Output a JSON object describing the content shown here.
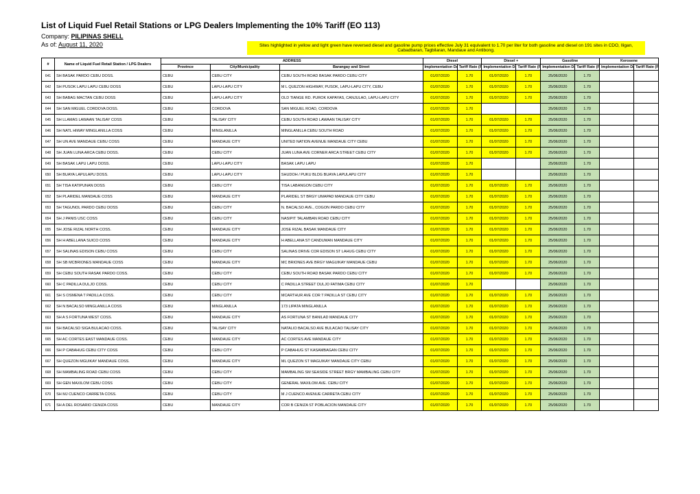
{
  "doc": {
    "title": "List of Liquid Fuel Retail Stations or LPG Dealers Implementing the 10% Tariff (EO 113)",
    "company_label": "Company:",
    "company_name": "PILIPINAS SHELL",
    "asof_label": "As of:",
    "asof_date": "August 11, 2020",
    "notice": "Sites highlighted in yellow and light green have reversed diesel and gasoline pump prices effective July 31 equivalent to 1.70 per liter for both gasoline and diesel on 191 sites in CDO, Iligan, Cabadbaran, Tagbilaran, Mandaue and Antibong.",
    "headers": {
      "num": "#",
      "name": "Name of Liquid Fuel Retail Station / LPG Dealers",
      "address": "ADDRESS",
      "province": "Province",
      "city": "City/Municipality",
      "street": "Barangay and Street",
      "diesel": "Diesel",
      "dieselp": "Diesel +",
      "gasoline": "Gasoline",
      "kerosene": "Kerosene",
      "impl": "Implementation Date",
      "rate": "Tariff Rate (Php)"
    },
    "colors": {
      "yellow": "#ffff00",
      "green": "#c5e0b4"
    },
    "rows": [
      {
        "n": "641",
        "name": "SH BASAK PARDO CEBU DOSS.",
        "prov": "CEBU",
        "city": "CEBU CITY",
        "street": "CEBU SOUTH ROAD BASAK PARDO CEBU CITY",
        "d_date": "01/07/2020",
        "d_rate": "1.70",
        "dp_date": "01/07/2020",
        "dp_rate": "1.70",
        "g_date": "25/06/2020",
        "g_rate": "1.70",
        "g_hl": "green"
      },
      {
        "n": "642",
        "name": "SH PUSOK LAPU LAPU CEBU DOSS",
        "prov": "CEBU",
        "city": "LAPU-LAPU CITY",
        "street": "M L QUEZON HIGHWAY, PUSOK, LAPU-LAPU CITY, CEBU",
        "d_date": "01/07/2020",
        "d_rate": "1.70",
        "dp_date": "01/07/2020",
        "dp_rate": "1.70",
        "g_date": "25/06/2020",
        "g_rate": "1.70",
        "g_hl": "green"
      },
      {
        "n": "643",
        "name": "SH BABAG MACTAN CEBU DOSS",
        "prov": "CEBU",
        "city": "LAPU-LAPU CITY",
        "street": "OLD TIANGE RD. PUROK KAPAYAS, CANJULAO, LAPU-LAPU CITY",
        "d_date": "01/07/2020",
        "d_rate": "1.70",
        "dp_date": "01/07/2020",
        "dp_rate": "1.70",
        "g_date": "25/06/2020",
        "g_rate": "1.70",
        "g_hl": "green"
      },
      {
        "n": "644",
        "name": "SH SAN MIGUEL CORDOVA DOSS.",
        "prov": "CEBU",
        "city": "CORDOVA",
        "street": "SAN MIGUEL ROAD, CORDOVA",
        "d_date": "01/07/2020",
        "d_rate": "1.70",
        "dp_date": "",
        "dp_rate": "",
        "g_date": "25/06/2020",
        "g_rate": "1.70",
        "g_hl": "green"
      },
      {
        "n": "645",
        "name": "SH LLAMAS LAWAAN TALISAY COSS",
        "prov": "CEBU",
        "city": "TALISAY CITY",
        "street": "CEBU SOUTH ROAD LAWAAN TALISAY CITY",
        "d_date": "01/07/2020",
        "d_rate": "1.70",
        "dp_date": "01/07/2020",
        "dp_rate": "1.70",
        "g_date": "25/06/2020",
        "g_rate": "1.70",
        "g_hl": "green"
      },
      {
        "n": "646",
        "name": "SH NATL HIWAY MINGLANILLA COSS",
        "prov": "CEBU",
        "city": "MINGLANILLA",
        "street": "MINGLANILLA CEBU SOUTH ROAD",
        "d_date": "01/07/2020",
        "d_rate": "1.70",
        "dp_date": "01/07/2020",
        "dp_rate": "1.70",
        "g_date": "25/06/2020",
        "g_rate": "1.70",
        "g_hl": "green"
      },
      {
        "n": "647",
        "name": "SH UN AVE MANDAUE CEBU COSS",
        "prov": "CEBU",
        "city": "MANDAUE CITY",
        "street": "UNITED NATION AVENUE MANDAUE CITY CEBU",
        "d_date": "01/07/2020",
        "d_rate": "1.70",
        "dp_date": "01/07/2020",
        "dp_rate": "1.70",
        "g_date": "25/06/2020",
        "g_rate": "1.70",
        "g_hl": "green"
      },
      {
        "n": "648",
        "name": "SH JUAN LUNA ARCA CEBU DOSS.",
        "prov": "CEBU",
        "city": "CEBU CITY",
        "street": "JUAN LUNA AVE CORNER ARCA STREET CEBU CITY",
        "d_date": "01/07/2020",
        "d_rate": "1.70",
        "dp_date": "01/07/2020",
        "dp_rate": "1.70",
        "g_date": "25/06/2020",
        "g_rate": "1.70",
        "g_hl": "green"
      },
      {
        "n": "649",
        "name": "SH BASAK LAPU LAPU DOSS.",
        "prov": "CEBU",
        "city": "LAPU-LAPU CITY",
        "street": "BASAK LAPU LAPU",
        "d_date": "01/07/2020",
        "d_rate": "1.70",
        "dp_date": "",
        "dp_rate": "",
        "g_date": "25/06/2020",
        "g_rate": "1.70",
        "g_hl": "green"
      },
      {
        "n": "650",
        "name": "SH BUAYA LAPULAPU DOSS.",
        "prov": "CEBU",
        "city": "LAPU-LAPU CITY",
        "street": "SHUDOH / PUKU BLDG BUAYA LAPULAPU CITY",
        "d_date": "01/07/2020",
        "d_rate": "1.70",
        "dp_date": "",
        "dp_rate": "",
        "g_date": "25/06/2020",
        "g_rate": "1.70",
        "g_hl": "green"
      },
      {
        "n": "651",
        "name": "SH TISA KATIPUNAN DOSS",
        "prov": "CEBU",
        "city": "CEBU CITY",
        "street": "TISA LABANGON CEBU CITY",
        "d_date": "01/07/2020",
        "d_rate": "1.70",
        "dp_date": "01/07/2020",
        "dp_rate": "1.70",
        "g_date": "25/06/2020",
        "g_rate": "1.70",
        "g_hl": "green"
      },
      {
        "n": "652",
        "name": "SH PLARIDEL MANDAUE COSS",
        "prov": "CEBU",
        "city": "MANDAUE CITY",
        "street": "PLARIDEL ST BRGY UMAPAD MANDAUE CITY CEBU",
        "d_date": "01/07/2020",
        "d_rate": "1.70",
        "dp_date": "01/07/2020",
        "dp_rate": "1.70",
        "g_date": "25/06/2020",
        "g_rate": "1.70",
        "g_hl": "green"
      },
      {
        "n": "653",
        "name": "SH TAGUNOL PARDO CEBU DOSS",
        "prov": "CEBU",
        "city": "CEBU CITY",
        "street": "N. BACALSO AVE., COGON PARDO CEBU CITY",
        "d_date": "01/07/2020",
        "d_rate": "1.70",
        "dp_date": "01/07/2020",
        "dp_rate": "1.70",
        "g_date": "25/06/2020",
        "g_rate": "1.70",
        "g_hl": "green"
      },
      {
        "n": "654",
        "name": "SH J PANIS USC COSS",
        "prov": "CEBU",
        "city": "CEBU CITY",
        "street": "NASIPIT TALAMBAN ROAD CEBU CITY",
        "d_date": "01/07/2020",
        "d_rate": "1.70",
        "dp_date": "01/07/2020",
        "dp_rate": "1.70",
        "g_date": "25/06/2020",
        "g_rate": "1.70",
        "g_hl": "green"
      },
      {
        "n": "655",
        "name": "SH JOSE RIZAL NORTH COSS.",
        "prov": "CEBU",
        "city": "MANDAUE CITY",
        "street": "JOSE RIZAL BASAK MANDAUE CITY",
        "d_date": "01/07/2020",
        "d_rate": "1.70",
        "dp_date": "01/07/2020",
        "dp_rate": "1.70",
        "g_date": "25/06/2020",
        "g_rate": "1.70",
        "g_hl": "green"
      },
      {
        "n": "656",
        "name": "SH H ABELLANA SUICO COSS",
        "prov": "CEBU",
        "city": "MANDAUE CITY",
        "street": "H ABELLANA ST CANDUMAN MANDAUE CITY",
        "d_date": "01/07/2020",
        "d_rate": "1.70",
        "dp_date": "01/07/2020",
        "dp_rate": "1.70",
        "g_date": "25/06/2020",
        "g_rate": "1.70",
        "g_hl": "green"
      },
      {
        "n": "657",
        "name": "SH SALINAS EDISON CEBU COSS",
        "prov": "CEBU",
        "city": "CEBU CITY",
        "street": "SALINAS DRIVE COR EDISON ST LAHUG CEBU CITY",
        "d_date": "01/07/2020",
        "d_rate": "1.70",
        "dp_date": "01/07/2020",
        "dp_rate": "1.70",
        "g_date": "25/06/2020",
        "g_rate": "1.70",
        "g_hl": "green"
      },
      {
        "n": "658",
        "name": "SH SB MCBRIONES MANDAUE COSS",
        "prov": "CEBU",
        "city": "MANDAUE CITY",
        "street": "MC BRIONES AVE BRGY MAGUIKAY MANDAUE CEBU",
        "d_date": "01/07/2020",
        "d_rate": "1.70",
        "dp_date": "01/07/2020",
        "dp_rate": "1.70",
        "g_date": "25/06/2020",
        "g_rate": "1.70",
        "g_hl": "green"
      },
      {
        "n": "659",
        "name": "SH CEBU SOUTH RASAK PARDO COSS.",
        "prov": "CEBU",
        "city": "CEBU CITY",
        "street": "CEBU SOUTH ROAD BASAK PARDO CEBU CITY",
        "d_date": "01/07/2020",
        "d_rate": "1.70",
        "dp_date": "01/07/2020",
        "dp_rate": "1.70",
        "g_date": "25/06/2020",
        "g_rate": "1.70",
        "g_hl": "green"
      },
      {
        "n": "660",
        "name": "SH C PADILLA DULJO COSS.",
        "prov": "CEBU",
        "city": "CEBU CITY",
        "street": "C PADILLA STREET DULJO FATIMA CEBU CITY",
        "d_date": "01/07/2020",
        "d_rate": "1.70",
        "dp_date": "",
        "dp_rate": "",
        "g_date": "25/06/2020",
        "g_rate": "1.70",
        "g_hl": "green"
      },
      {
        "n": "661",
        "name": "SH S OSMENA T PADILLA COSS.",
        "prov": "CEBU",
        "city": "CEBU CITY",
        "street": "MCARTHUR AVE COR T PADILLA ST CEBU CITY",
        "d_date": "01/07/2020",
        "d_rate": "1.70",
        "dp_date": "01/07/2020",
        "dp_rate": "1.70",
        "g_date": "25/06/2020",
        "g_rate": "1.70",
        "g_hl": "green"
      },
      {
        "n": "662",
        "name": "SH N BACALSO MINGLANILLA COSS",
        "prov": "CEBU",
        "city": "MINGLANILLA",
        "street": "173 LIPATA MINGLANILLA",
        "d_date": "01/07/2020",
        "d_rate": "1.70",
        "dp_date": "01/07/2020",
        "dp_rate": "1.70",
        "g_date": "25/06/2020",
        "g_rate": "1.70",
        "g_hl": "green"
      },
      {
        "n": "663",
        "name": "SH A S FORTUNA WEST COSS.",
        "prov": "CEBU",
        "city": "MANDAUE CITY",
        "street": "AS FORTUNA ST BANILAD MANDAUE CITY",
        "d_date": "01/07/2020",
        "d_rate": "1.70",
        "dp_date": "01/07/2020",
        "dp_rate": "1.70",
        "g_date": "25/06/2020",
        "g_rate": "1.70",
        "g_hl": "green"
      },
      {
        "n": "664",
        "name": "SH BACALSO SIGA BULACAO COSS.",
        "prov": "CEBU",
        "city": "TALISAY CITY",
        "street": "NATALIO BACALSO AVE BULACAO TALISAY CITY",
        "d_date": "01/07/2020",
        "d_rate": "1.70",
        "dp_date": "01/07/2020",
        "dp_rate": "1.70",
        "g_date": "25/06/2020",
        "g_rate": "1.70",
        "g_hl": "green"
      },
      {
        "n": "665",
        "name": "SH AC CORTES EAST MANDAUE COSS.",
        "prov": "CEBU",
        "city": "MANDAUE CITY",
        "street": "AC CORTES AVE MANDAUE CITY",
        "d_date": "01/07/2020",
        "d_rate": "1.70",
        "dp_date": "01/07/2020",
        "dp_rate": "1.70",
        "g_date": "25/06/2020",
        "g_rate": "1.70",
        "g_hl": "green"
      },
      {
        "n": "666",
        "name": "SH P CABAHUG CEBU CITY COSS",
        "prov": "CEBU",
        "city": "CEBU CITY",
        "street": "P CABAHUG ST KASAMBAGAN CEBU CITY",
        "d_date": "01/07/2020",
        "d_rate": "1.70",
        "dp_date": "01/07/2020",
        "dp_rate": "1.70",
        "g_date": "25/06/2020",
        "g_rate": "1.70",
        "g_hl": "green"
      },
      {
        "n": "667",
        "name": "SH QUEZON MGUIKAY MANDAUE COSS.",
        "prov": "CEBU",
        "city": "MANDAUE CITY",
        "street": "ML QUEZON ST MAGUIKAY MANDAUE CITY CEBU",
        "d_date": "01/07/2020",
        "d_rate": "1.70",
        "dp_date": "01/07/2020",
        "dp_rate": "1.70",
        "g_date": "25/06/2020",
        "g_rate": "1.70",
        "g_hl": "green"
      },
      {
        "n": "668",
        "name": "SH MAMBALING ROAD CEBU COSS",
        "prov": "CEBU",
        "city": "CEBU CITY",
        "street": "MAMBALING SM SEASIDE STREET BRGY MAMBALING CEBU CITY",
        "d_date": "01/07/2020",
        "d_rate": "1.70",
        "dp_date": "01/07/2020",
        "dp_rate": "1.70",
        "g_date": "25/06/2020",
        "g_rate": "1.70",
        "g_hl": "green"
      },
      {
        "n": "669",
        "name": "SH GEN MAXILOM CEBU COSS",
        "prov": "CEBU",
        "city": "CEBU CITY",
        "street": "GENERAL MAXILOM AVE. CEBU CITY",
        "d_date": "01/07/2020",
        "d_rate": "1.70",
        "dp_date": "01/07/2020",
        "dp_rate": "1.70",
        "g_date": "25/06/2020",
        "g_rate": "1.70",
        "g_hl": "green"
      },
      {
        "n": "670",
        "name": "SH MJ CUENCO CARRETA COSS.",
        "prov": "CEBU",
        "city": "CEBU CITY",
        "street": "M J CUENCO AVENUE CARRETA CEBU CITY",
        "d_date": "01/07/2020",
        "d_rate": "1.70",
        "dp_date": "01/07/2020",
        "dp_rate": "1.70",
        "g_date": "25/06/2020",
        "g_rate": "1.70",
        "g_hl": "green"
      },
      {
        "n": "671",
        "name": "SH A DEL ROSARIO CENIZA COSS",
        "prov": "CEBU",
        "city": "MANDAUE CITY",
        "street": "COR B CENIZA ST POBLACION MANDAUE CITY",
        "d_date": "01/07/2020",
        "d_rate": "1.70",
        "dp_date": "01/07/2020",
        "dp_rate": "1.70",
        "g_date": "25/06/2020",
        "g_rate": "1.70",
        "g_hl": "green"
      }
    ]
  }
}
